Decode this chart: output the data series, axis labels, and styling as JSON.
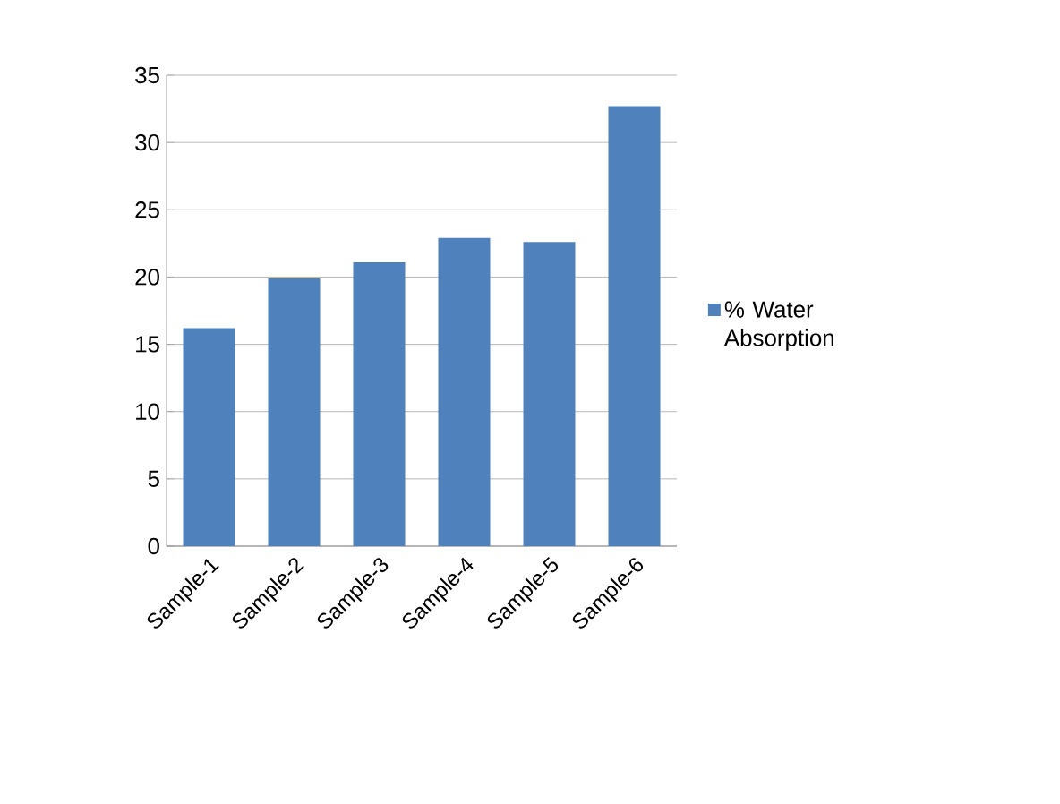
{
  "chart_data": {
    "type": "bar",
    "categories": [
      "Sample-1",
      "Sample-2",
      "Sample-3",
      "Sample-4",
      "Sample-5",
      "Sample-6"
    ],
    "series": [
      {
        "name": "% Water Absorption",
        "color": "#4f81bd",
        "values": [
          16.2,
          19.9,
          21.1,
          22.9,
          22.6,
          32.7
        ]
      }
    ],
    "ylim": [
      0,
      35
    ],
    "yticks": [
      0,
      5,
      10,
      15,
      20,
      25,
      30,
      35
    ],
    "grid": "y",
    "legend": "right"
  }
}
